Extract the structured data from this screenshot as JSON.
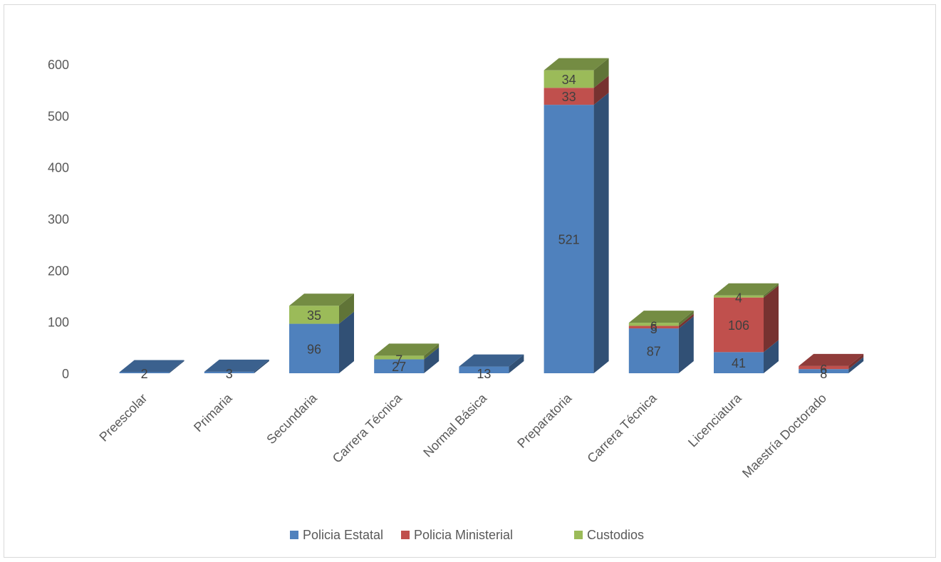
{
  "chart_data": {
    "type": "bar",
    "stacked": true,
    "style_3d": true,
    "categories": [
      "Preescolar",
      "Primaria",
      "Secundaria",
      "Carrera Técnica",
      "Normal Básica",
      "Preparatoria",
      "Carrera Técnica",
      "Licenciatura",
      "Maestría Doctorado"
    ],
    "series": [
      {
        "name": "Policia Estatal",
        "color": "#4f81bd",
        "values": [
          2,
          3,
          96,
          27,
          13,
          521,
          87,
          41,
          8
        ]
      },
      {
        "name": "Policia Ministerial",
        "color": "#c0504d",
        "values": [
          null,
          null,
          null,
          null,
          null,
          33,
          5,
          106,
          6
        ]
      },
      {
        "name": "Custodios",
        "color": "#9bbb59",
        "values": [
          null,
          null,
          35,
          7,
          null,
          34,
          6,
          4,
          null
        ]
      }
    ],
    "data_labels": [
      [
        "2",
        "3",
        "96",
        "27",
        "13",
        "521",
        "87",
        "41",
        "8"
      ],
      [
        "",
        "",
        "",
        "",
        "",
        "33",
        "5",
        "106",
        "6"
      ],
      [
        "",
        "",
        "35",
        "7",
        "",
        "34",
        "6",
        "4",
        ""
      ]
    ],
    "y_ticks": [
      "0",
      "100",
      "200",
      "300",
      "400",
      "500",
      "600"
    ],
    "ylim": [
      0,
      600
    ],
    "gridlines": false,
    "legend_position": "bottom",
    "title": "",
    "xlabel": "",
    "ylabel": ""
  }
}
